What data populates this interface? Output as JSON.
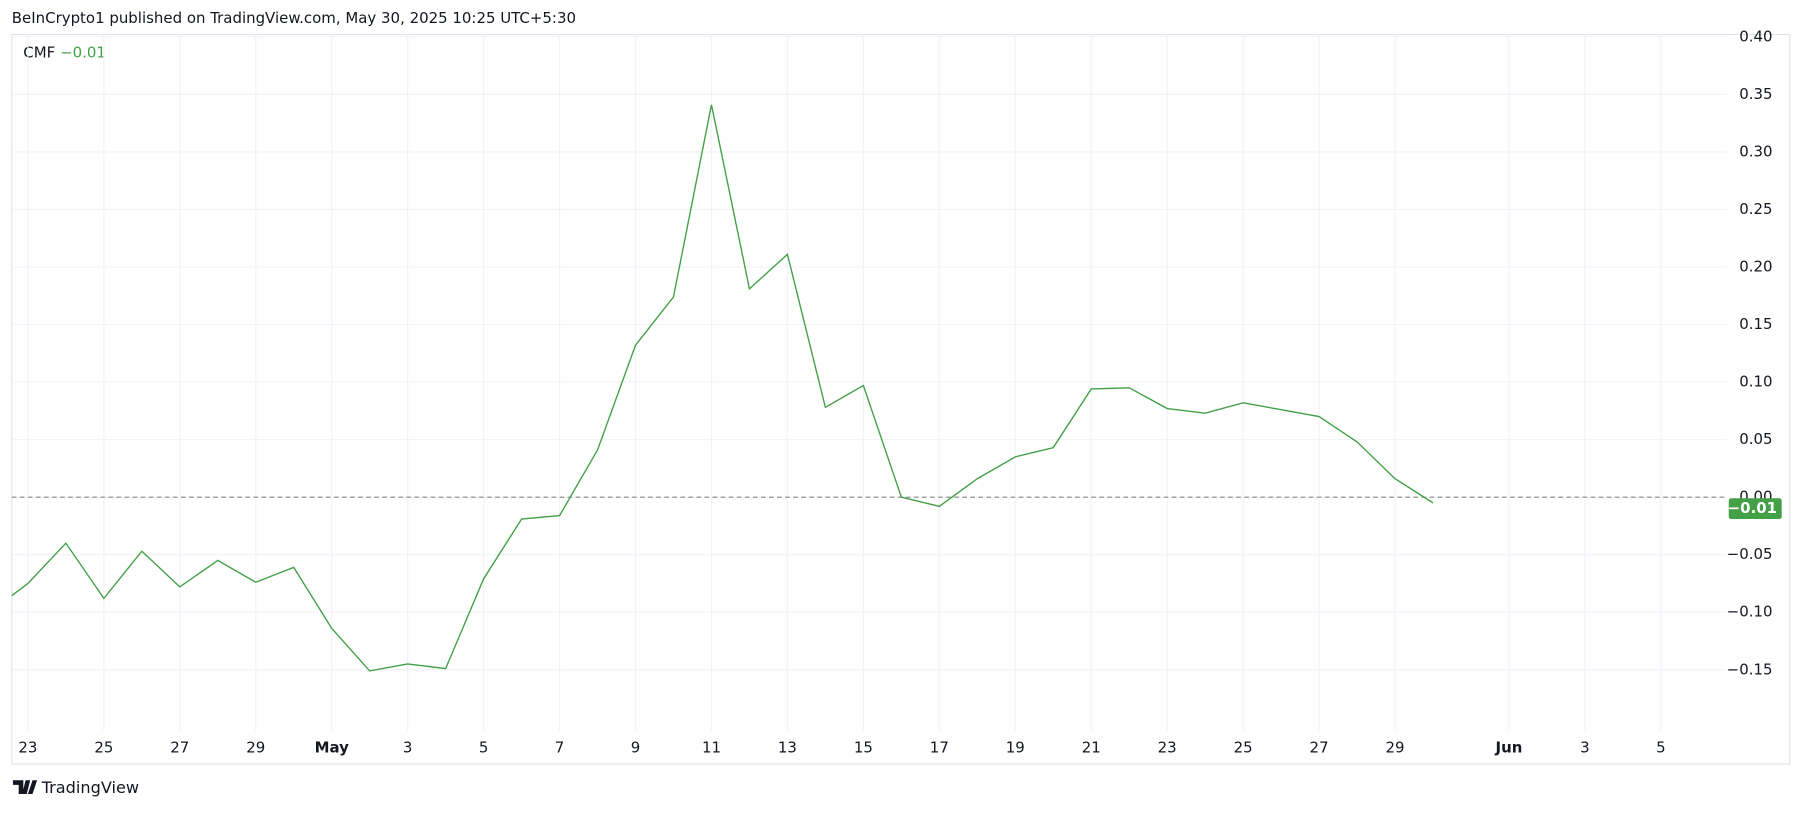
{
  "header": "BeInCrypto1 published on TradingView.com, May 30, 2025 10:25 UTC+5:30",
  "footer": "TradingView",
  "chart_data": {
    "type": "line",
    "categories": [
      null,
      "23",
      null,
      "25",
      null,
      "27",
      null,
      "29",
      null,
      "May",
      null,
      "3",
      null,
      "5",
      null,
      "7",
      null,
      "9",
      null,
      "11",
      null,
      "13",
      null,
      "15",
      null,
      "17",
      null,
      "19",
      null,
      "21",
      null,
      "23",
      null,
      "25",
      null,
      "27",
      null,
      "29",
      null,
      null,
      "Jun",
      null,
      "3",
      null,
      "5"
    ],
    "series": [
      {
        "name": "CMF",
        "color": "#43a047",
        "values": [
          -0.1,
          -0.075,
          -0.04,
          -0.088,
          -0.047,
          -0.078,
          -0.055,
          -0.074,
          -0.061,
          -0.114,
          -0.151,
          -0.145,
          -0.149,
          -0.071,
          -0.019,
          -0.016,
          0.041,
          0.132,
          0.174,
          0.341,
          0.181,
          0.211,
          0.078,
          0.097,
          0.0,
          -0.008,
          0.016,
          0.035,
          0.043,
          0.094,
          0.095,
          0.077,
          0.073,
          0.082,
          0.076,
          0.07,
          0.048,
          0.016,
          -0.005,
          null,
          null,
          null,
          null,
          null,
          null
        ]
      }
    ],
    "current": {
      "value": -0.01,
      "label": "−0.01"
    },
    "baseline": 0,
    "ylim": [
      -0.203,
      0.402
    ],
    "yticks": [
      {
        "value": 0.4,
        "label": "0.40"
      },
      0.35,
      {
        "value": 0.3,
        "label": "0.30"
      },
      0.25,
      {
        "value": 0.2,
        "label": "0.20"
      },
      0.15,
      {
        "value": 0.1,
        "label": "0.10"
      },
      0.05,
      {
        "value": 0,
        "label": "0.00"
      },
      {
        "value": -0.05,
        "label": "−0.05"
      },
      {
        "value": -0.1,
        "label": "−0.10"
      },
      {
        "value": -0.15,
        "label": "−0.15"
      }
    ],
    "grid": true
  }
}
